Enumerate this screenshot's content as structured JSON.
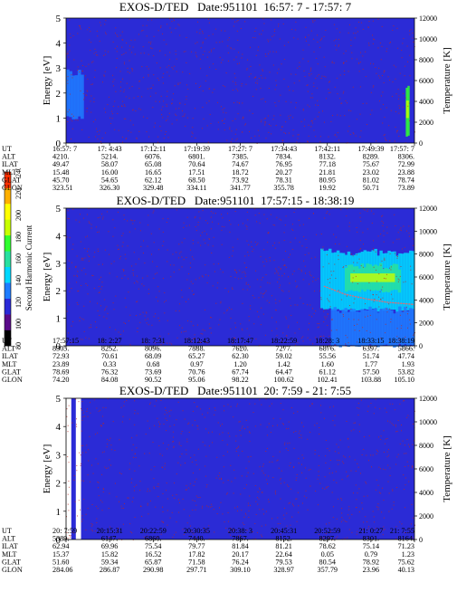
{
  "colors": {
    "background": "#2b2bd6",
    "field_red": "#c0281e",
    "colorbar": [
      "#000000",
      "#5a0a8a",
      "#2a2ad8",
      "#1e7cff",
      "#00d8ff",
      "#28e0a0",
      "#30ff30",
      "#c8ff00",
      "#ffff00",
      "#ffb000",
      "#ff3000"
    ]
  },
  "colorbar": {
    "label": "Second Harmonic Current",
    "ticks": [
      "240",
      "220",
      "200",
      "180",
      "160",
      "140",
      "120",
      "100",
      "80"
    ]
  },
  "panels": [
    {
      "title": "EXOS-D/TED   Date:951101  16:57: 7 - 17:57: 7",
      "ylabel": "Energy [eV]",
      "y2label": "Temperature [K]",
      "yticks": [
        "5",
        "4",
        "3",
        "2",
        "1",
        "0"
      ],
      "y2ticks": [
        "12000",
        "10000",
        "8000",
        "6000",
        "4000",
        "2000",
        "0"
      ],
      "rows": [
        {
          "label": "UT",
          "values": [
            "16:57: 7",
            "17: 4:43",
            "17:12:11",
            "17:19:39",
            "17:27: 7",
            "17:34:43",
            "17:42:11",
            "17:49:39",
            "17:57: 7"
          ]
        },
        {
          "label": "ALT",
          "values": [
            "4210.",
            "5214.",
            "6076.",
            "6801.",
            "7385.",
            "7834.",
            "8132.",
            "8289.",
            "8306."
          ]
        },
        {
          "label": "ILAT",
          "values": [
            "49.47",
            "58.07",
            "65.08",
            "70.64",
            "74.67",
            "76.95",
            "77.18",
            "75.67",
            "72.99"
          ]
        },
        {
          "label": "MLT",
          "values": [
            "15.48",
            "16.00",
            "16.65",
            "17.51",
            "18.72",
            "20.27",
            "21.81",
            "23.02",
            "23.88"
          ]
        },
        {
          "label": "GLAT",
          "values": [
            "45.70",
            "54.65",
            "62.12",
            "68.50",
            "73.92",
            "78.31",
            "80.95",
            "81.02",
            "78.74"
          ]
        },
        {
          "label": "GLON",
          "values": [
            "323.51",
            "326.30",
            "329.48",
            "334.11",
            "341.77",
            "355.78",
            "19.92",
            "50.71",
            "73.89"
          ]
        }
      ]
    },
    {
      "title": "EXOS-D/TED   Date:951101  17:57:15 - 18:38:19",
      "ylabel": "Energy [eV]",
      "y2label": "Temperature [K]",
      "yticks": [
        "5",
        "4",
        "3",
        "2",
        "1",
        "0"
      ],
      "y2ticks": [
        "12000",
        "10000",
        "8000",
        "6000",
        "4000",
        "2000",
        "0"
      ],
      "rows": [
        {
          "label": "UT",
          "values": [
            "17:57:15",
            "18: 2:27",
            "18: 7:31",
            "18:12:43",
            "18:17:47",
            "18:22:59",
            "18:28: 3",
            "18:33:15",
            "18:38:19"
          ]
        },
        {
          "label": "ALT",
          "values": [
            "8305.",
            "8252.",
            "8096.",
            "7888.",
            "7620.",
            "7277.",
            "6876.",
            "6397.",
            "5866."
          ]
        },
        {
          "label": "ILAT",
          "values": [
            "72.93",
            "70.61",
            "68.09",
            "65.27",
            "62.30",
            "59.02",
            "55.56",
            "51.74",
            "47.74"
          ]
        },
        {
          "label": "MLT",
          "values": [
            "23.89",
            "0.33",
            "0.68",
            "0.97",
            "1.20",
            "1.42",
            "1.60",
            "1.77",
            "1.93"
          ]
        },
        {
          "label": "GLAT",
          "values": [
            "78.69",
            "76.32",
            "73.69",
            "70.76",
            "67.74",
            "64.47",
            "61.12",
            "57.50",
            "53.82"
          ]
        },
        {
          "label": "GLON",
          "values": [
            "74.20",
            "84.08",
            "90.52",
            "95.06",
            "98.22",
            "100.62",
            "102.41",
            "103.88",
            "105.10"
          ]
        }
      ]
    },
    {
      "title": "EXOS-D/TED   Date:951101  20: 7:59 - 21: 7:55",
      "ylabel": "Energy [eV]",
      "y2label": "Temperature [K]",
      "yticks": [
        "5",
        "4",
        "3",
        "2",
        "1",
        "0"
      ],
      "y2ticks": [
        "12000",
        "10000",
        "8000",
        "6000",
        "4000",
        "2000",
        "0"
      ],
      "rows": [
        {
          "label": "UT",
          "values": [
            "20: 7:59",
            "20:15:31",
            "20:22:59",
            "20:30:35",
            "20:38: 3",
            "20:45:31",
            "20:52:59",
            "21: 0:27",
            "21: 7:55"
          ]
        },
        {
          "label": "ALT",
          "values": [
            "5389.",
            "6147.",
            "6860.",
            "7440.",
            "7867.",
            "8152.",
            "8297.",
            "8301.",
            "8164."
          ]
        },
        {
          "label": "ILAT",
          "values": [
            "62.94",
            "69.96",
            "75.54",
            "79.77",
            "81.84",
            "81.21",
            "78.62",
            "75.14",
            "71.23"
          ]
        },
        {
          "label": "MLT",
          "values": [
            "15.37",
            "15.82",
            "16.52",
            "17.82",
            "20.17",
            "22.64",
            "0.05",
            "0.79",
            "1.23"
          ]
        },
        {
          "label": "GLAT",
          "values": [
            "51.60",
            "59.34",
            "65.87",
            "71.58",
            "76.24",
            "79.53",
            "80.54",
            "78.92",
            "75.62"
          ]
        },
        {
          "label": "GLON",
          "values": [
            "284.06",
            "286.87",
            "290.98",
            "297.71",
            "309.10",
            "328.97",
            "357.79",
            "23.96",
            "40.13"
          ]
        }
      ]
    }
  ],
  "chart_data": [
    {
      "type": "heatmap",
      "title": "EXOS-D/TED   Date:951101  16:57: 7 - 17:57: 7",
      "ylabel": "Energy [eV]",
      "y2label": "Temperature [K]",
      "ylim": [
        0,
        5
      ],
      "y2lim": [
        0,
        12000
      ],
      "x": [
        "16:57: 7",
        "17: 4:43",
        "17:12:11",
        "17:19:39",
        "17:27: 7",
        "17:34:43",
        "17:42:11",
        "17:49:39",
        "17:57: 7"
      ],
      "features": [
        {
          "x_from": 0.0,
          "x_to": 0.05,
          "e_low": 1.0,
          "e_high": 2.8,
          "level": 130
        },
        {
          "x_from": 0.975,
          "x_to": 0.985,
          "e_low": 0.3,
          "e_high": 2.3,
          "level": 170
        }
      ]
    },
    {
      "type": "heatmap",
      "title": "EXOS-D/TED   Date:951101  17:57:15 - 18:38:19",
      "ylabel": "Energy [eV]",
      "y2label": "Temperature [K]",
      "ylim": [
        0,
        5
      ],
      "y2lim": [
        0,
        12000
      ],
      "x": [
        "17:57:15",
        "18: 2:27",
        "18: 7:31",
        "18:12:43",
        "18:17:47",
        "18:22:59",
        "18:28: 3",
        "18:33:15",
        "18:38:19"
      ],
      "features": [
        {
          "x_from": 0.73,
          "x_to": 1.0,
          "e_low": 1.3,
          "e_high": 3.4,
          "level": 150
        },
        {
          "x_from": 0.8,
          "x_to": 0.96,
          "e_low": 2.0,
          "e_high": 2.9,
          "level": 165
        },
        {
          "x_from": 0.76,
          "x_to": 1.0,
          "e_low": 0.0,
          "e_high": 1.3,
          "level": 125
        }
      ],
      "temperature_trace": [
        {
          "x": 0.74,
          "t": 5200
        },
        {
          "x": 0.8,
          "t": 4500
        },
        {
          "x": 0.86,
          "t": 4100
        },
        {
          "x": 0.92,
          "t": 3800
        },
        {
          "x": 1.0,
          "t": 3600
        }
      ]
    },
    {
      "type": "heatmap",
      "title": "EXOS-D/TED   Date:951101  20: 7:59 - 21: 7:55",
      "ylabel": "Energy [eV]",
      "y2label": "Temperature [K]",
      "ylim": [
        0,
        5
      ],
      "y2lim": [
        0,
        12000
      ],
      "x": [
        "20: 7:59",
        "20:15:31",
        "20:22:59",
        "20:30:35",
        "20:38: 3",
        "20:45:31",
        "20:52:59",
        "21: 0:27",
        "21: 7:55"
      ],
      "features": [
        {
          "x_from": 0.0,
          "x_to": 0.015,
          "data_gap": true
        },
        {
          "x_from": 0.028,
          "x_to": 0.043,
          "data_gap": true
        }
      ]
    }
  ]
}
